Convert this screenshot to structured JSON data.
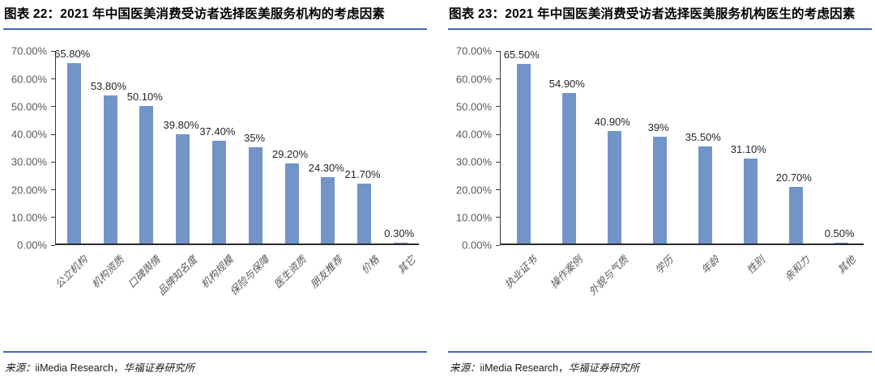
{
  "colors": {
    "bar": "#7295C7",
    "rule": "#4466B8",
    "axis": "#3a3a3a",
    "tick_label": "#595959",
    "data_label": "#262626"
  },
  "figures": [
    {
      "title": "图表 22：2021 年中国医美消费受访者选择医美服务机构的考虑因素",
      "source": {
        "prefix": "来源：",
        "agency": "iiMedia Research，",
        "publisher": "华福证券研究所"
      }
    },
    {
      "title": "图表 23：2021 年中国医美消费受访者选择医美服务机构医生的考虑因素",
      "source": {
        "prefix": "来源：",
        "agency": "iiMedia Research，",
        "publisher": "华福证券研究所"
      }
    }
  ],
  "chart_data": [
    {
      "type": "bar",
      "title": "2021 年中国医美消费受访者选择医美服务机构的考虑因素",
      "categories": [
        "公立机构",
        "机构资质",
        "口碑舆情",
        "品牌知名度",
        "机构规模",
        "保险与保障",
        "医生资质",
        "朋友推荐",
        "价格",
        "其它"
      ],
      "values": [
        65.8,
        53.8,
        50.1,
        39.8,
        37.4,
        35,
        29.2,
        24.3,
        21.7,
        0.3
      ],
      "data_labels": [
        "65.80%",
        "53.80%",
        "50.10%",
        "39.80%",
        "37.40%",
        "35%",
        "29.20%",
        "24.30%",
        "21.70%",
        "0.30%"
      ],
      "xlabel": "",
      "ylabel": "",
      "ylim": [
        0,
        70
      ],
      "ytick_labels_top_to_bottom": [
        "70.00%",
        "60.00%",
        "50.00%",
        "40.00%",
        "30.00%",
        "20.00%",
        "10.00%",
        "0.00%"
      ],
      "grid": false,
      "legend": "none"
    },
    {
      "type": "bar",
      "title": "2021 年中国医美消费受访者选择医美服务机构医生的考虑因素",
      "categories": [
        "执业证书",
        "操作案例",
        "外貌与气质",
        "学历",
        "年龄",
        "性别",
        "亲和力",
        "其他"
      ],
      "values": [
        65.5,
        54.9,
        40.9,
        39,
        35.5,
        31.1,
        20.7,
        0.5
      ],
      "data_labels": [
        "65.50%",
        "54.90%",
        "40.90%",
        "39%",
        "35.50%",
        "31.10%",
        "20.70%",
        "0.50%"
      ],
      "xlabel": "",
      "ylabel": "",
      "ylim": [
        0,
        70
      ],
      "ytick_labels_top_to_bottom": [
        "70.00%",
        "60.00%",
        "50.00%",
        "40.00%",
        "30.00%",
        "20.00%",
        "10.00%",
        "0.00%"
      ],
      "grid": false,
      "legend": "none"
    }
  ]
}
